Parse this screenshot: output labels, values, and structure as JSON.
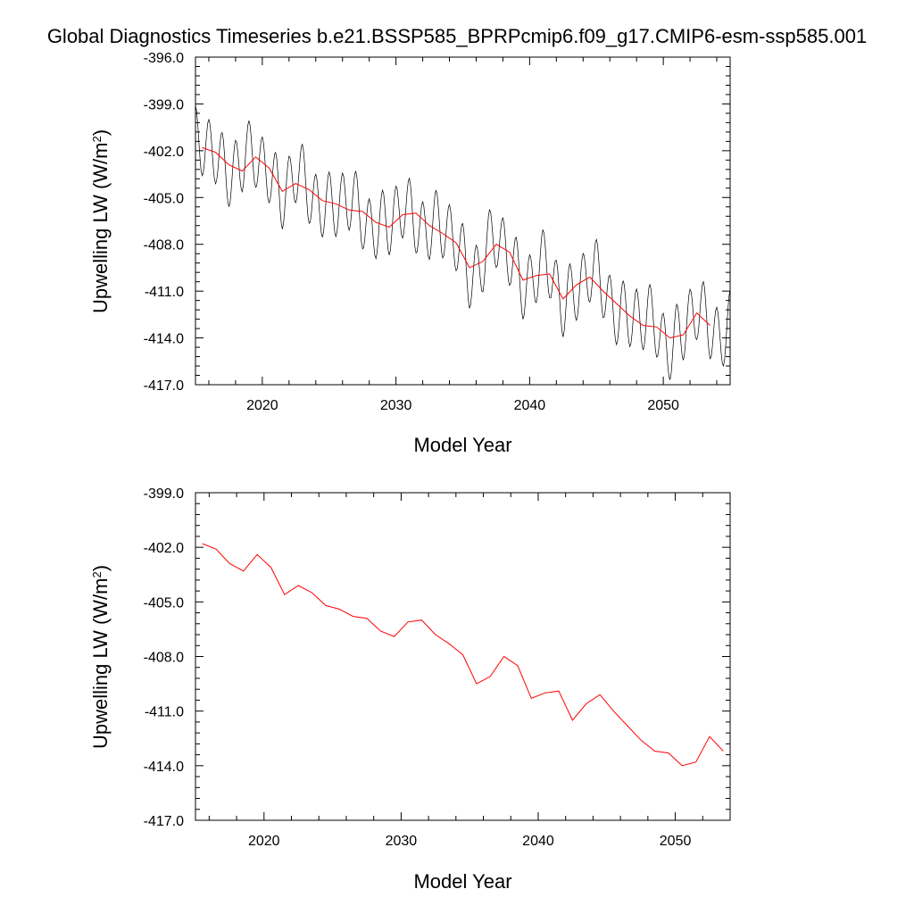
{
  "title": "Global Diagnostics Timeseries b.e21.BSSP585_BPRPcmip6.f09_g17.CMIP6-esm-ssp585.001",
  "colors": {
    "monthly": "#000000",
    "annual": "#ff0000",
    "axis": "#000000"
  },
  "chart_data": [
    {
      "type": "line",
      "xlabel": "Model Year",
      "ylabel_main": "Upwelling LW (W/m",
      "ylabel_sup": "2",
      "ylabel_close": ")",
      "xlim": [
        2015,
        2055
      ],
      "ylim": [
        -417,
        -396
      ],
      "xticks": [
        2020,
        2030,
        2040,
        2050
      ],
      "xtick_labels": [
        "2020",
        "2030",
        "2040",
        "2050"
      ],
      "yticks": [
        -396,
        -399,
        -402,
        -405,
        -408,
        -411,
        -414,
        -417
      ],
      "ytick_labels": [
        "-396.0",
        "-399.0",
        "-402.0",
        "-405.0",
        "-408.0",
        "-411.0",
        "-414.0",
        "-417.0"
      ],
      "monthly_series": {
        "start": 2015.0,
        "step": 0.0833333,
        "amplitude": 2.0,
        "note_shape": "seasonal oscillation around the annual mean"
      },
      "series": [
        {
          "role": "annual",
          "x": [
            2015.5,
            2016.5,
            2017.5,
            2018.5,
            2019.5,
            2020.5,
            2021.5,
            2022.5,
            2023.5,
            2024.5,
            2025.5,
            2026.5,
            2027.5,
            2028.5,
            2029.5,
            2030.5,
            2031.5,
            2032.5,
            2033.5,
            2034.5,
            2035.5,
            2036.5,
            2037.5,
            2038.5,
            2039.5,
            2040.5,
            2041.5,
            2042.5,
            2043.5,
            2044.5,
            2045.5,
            2046.5,
            2047.5,
            2048.5,
            2049.5,
            2050.5,
            2051.5,
            2052.5,
            2053.5
          ],
          "values": [
            -401.8,
            -402.1,
            -402.9,
            -403.3,
            -402.4,
            -403.1,
            -404.6,
            -404.1,
            -404.5,
            -405.2,
            -405.4,
            -405.8,
            -405.9,
            -406.6,
            -406.9,
            -406.1,
            -406.0,
            -406.8,
            -407.3,
            -407.9,
            -409.5,
            -409.1,
            -408.0,
            -408.5,
            -410.3,
            -410.0,
            -409.9,
            -411.5,
            -410.6,
            -410.1,
            -411.0,
            -411.8,
            -412.6,
            -413.2,
            -413.3,
            -414.0,
            -413.8,
            -412.4,
            -413.2
          ]
        }
      ]
    },
    {
      "type": "line",
      "xlabel": "Model Year",
      "ylabel_main": "Upwelling LW (W/m",
      "ylabel_sup": "2",
      "ylabel_close": ")",
      "xlim": [
        2015,
        2054
      ],
      "ylim": [
        -417,
        -399
      ],
      "xticks": [
        2020,
        2030,
        2040,
        2050
      ],
      "xtick_labels": [
        "2020",
        "2030",
        "2040",
        "2050"
      ],
      "yticks": [
        -399,
        -402,
        -405,
        -408,
        -411,
        -414,
        -417
      ],
      "ytick_labels": [
        "-399.0",
        "-402.0",
        "-405.0",
        "-408.0",
        "-411.0",
        "-414.0",
        "-417.0"
      ],
      "series": [
        {
          "role": "annual",
          "x": [
            2015.5,
            2016.5,
            2017.5,
            2018.5,
            2019.5,
            2020.5,
            2021.5,
            2022.5,
            2023.5,
            2024.5,
            2025.5,
            2026.5,
            2027.5,
            2028.5,
            2029.5,
            2030.5,
            2031.5,
            2032.5,
            2033.5,
            2034.5,
            2035.5,
            2036.5,
            2037.5,
            2038.5,
            2039.5,
            2040.5,
            2041.5,
            2042.5,
            2043.5,
            2044.5,
            2045.5,
            2046.5,
            2047.5,
            2048.5,
            2049.5,
            2050.5,
            2051.5,
            2052.5,
            2053.5
          ],
          "values": [
            -401.8,
            -402.1,
            -402.9,
            -403.3,
            -402.4,
            -403.1,
            -404.6,
            -404.1,
            -404.5,
            -405.2,
            -405.4,
            -405.8,
            -405.9,
            -406.6,
            -406.9,
            -406.1,
            -406.0,
            -406.8,
            -407.3,
            -407.9,
            -409.5,
            -409.1,
            -408.0,
            -408.5,
            -410.3,
            -410.0,
            -409.9,
            -411.5,
            -410.6,
            -410.1,
            -411.0,
            -411.8,
            -412.6,
            -413.2,
            -413.3,
            -414.0,
            -413.8,
            -412.4,
            -413.2
          ]
        }
      ]
    }
  ]
}
